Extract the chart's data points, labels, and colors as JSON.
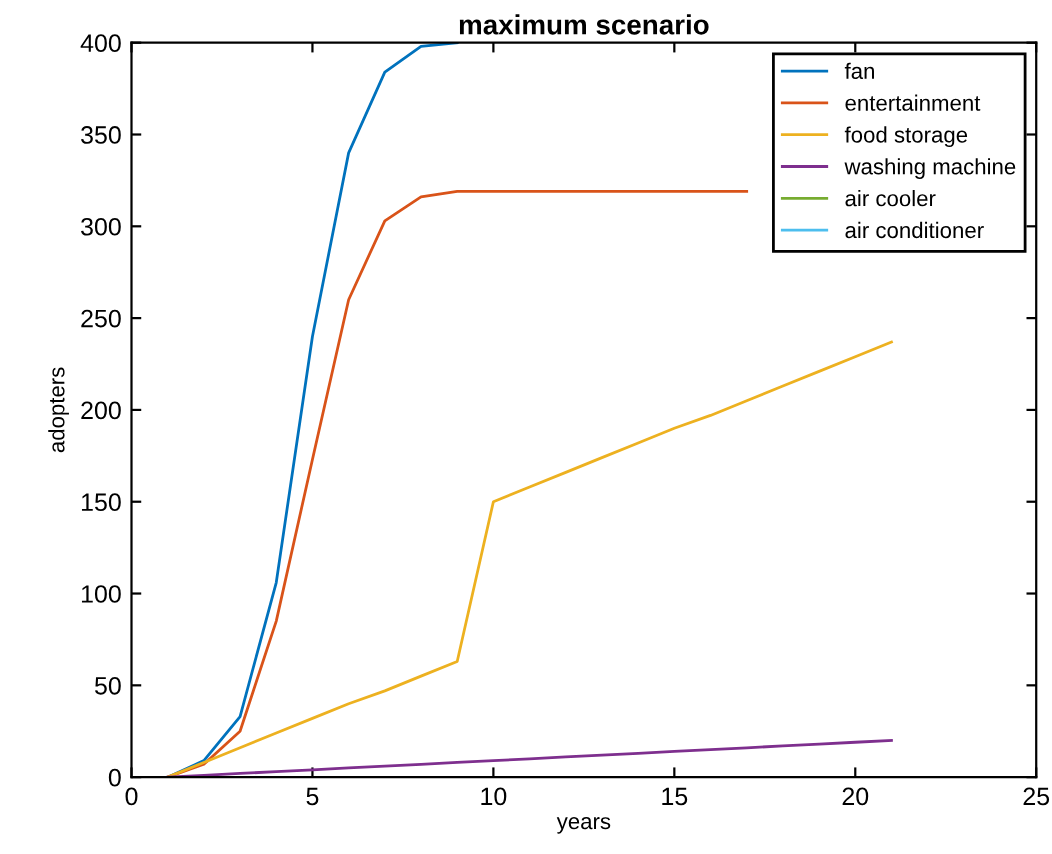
{
  "chart_data": {
    "type": "line",
    "title": "maximum scenario",
    "xlabel": "years",
    "ylabel": "adopters",
    "x": [
      1,
      2,
      3,
      4,
      5,
      6,
      7,
      8,
      9,
      10,
      11,
      12,
      13,
      14,
      15,
      16,
      17,
      18,
      19,
      20,
      21
    ],
    "series": [
      {
        "name": "fan",
        "color": "#0072bd",
        "values": [
          0,
          9,
          33,
          106,
          240,
          340,
          384,
          398,
          400,
          null,
          null,
          null,
          null,
          null,
          null,
          null,
          null,
          null,
          null,
          null,
          null
        ]
      },
      {
        "name": "entertainment",
        "color": "#d95319",
        "values": [
          0,
          7,
          25,
          85,
          173,
          260,
          303,
          316,
          319,
          319,
          319,
          319,
          319,
          319,
          319,
          319,
          319,
          null,
          null,
          null,
          null
        ]
      },
      {
        "name": "food storage",
        "color": "#edb120",
        "values": [
          0,
          8,
          16,
          24,
          32,
          40,
          47,
          55,
          63,
          150,
          158,
          166,
          174,
          182,
          190,
          197,
          205,
          213,
          221,
          229,
          237
        ]
      },
      {
        "name": "washing machine",
        "color": "#7e2f8e",
        "values": [
          0,
          1,
          2,
          3,
          4,
          5,
          6,
          7,
          8,
          9,
          10,
          11,
          12,
          13,
          14,
          15,
          16,
          17,
          18,
          19,
          20
        ]
      },
      {
        "name": "air cooler",
        "color": "#77ac30",
        "values": [
          null,
          null,
          null,
          null,
          null,
          null,
          null,
          null,
          null,
          null,
          null,
          null,
          null,
          null,
          null,
          null,
          null,
          null,
          null,
          null,
          null
        ]
      },
      {
        "name": "air conditioner",
        "color": "#4dbeee",
        "values": [
          null,
          null,
          null,
          null,
          null,
          null,
          null,
          null,
          null,
          null,
          null,
          null,
          null,
          null,
          null,
          null,
          null,
          null,
          null,
          null,
          null
        ]
      }
    ],
    "xlim": [
      0,
      25
    ],
    "xticks": [
      0,
      5,
      10,
      15,
      20,
      25
    ],
    "ylim": [
      0,
      400
    ],
    "yticks": [
      0,
      50,
      100,
      150,
      200,
      250,
      300,
      350,
      400
    ],
    "grid": false,
    "legend": "top right",
    "marker": "none",
    "line_style": "solid"
  }
}
